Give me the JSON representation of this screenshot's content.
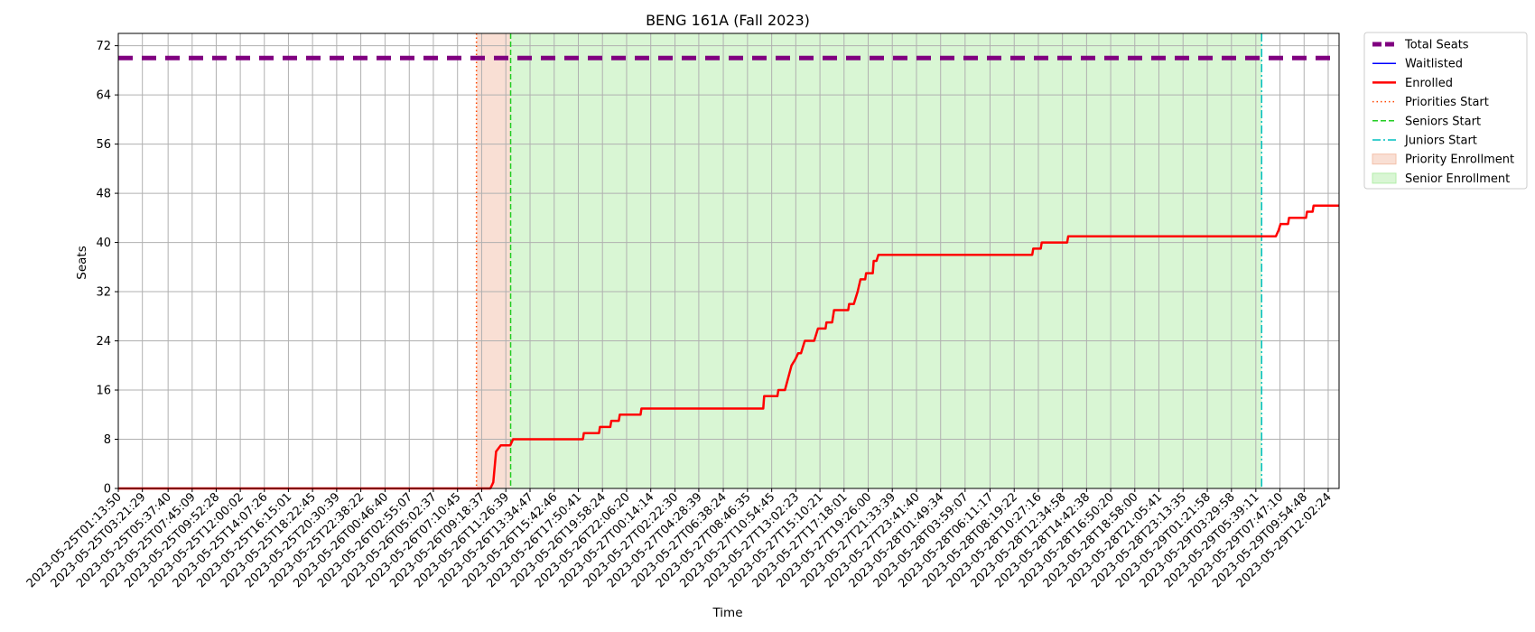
{
  "chart_data": {
    "type": "line",
    "title": "BENG 161A (Fall 2023)",
    "xlabel": "Time",
    "ylabel": "Seats",
    "ylim": [
      0,
      74
    ],
    "yticks": [
      0,
      8,
      16,
      24,
      32,
      40,
      48,
      56,
      64,
      72
    ],
    "xlim": [
      "2023-05-25T01:13:50",
      "2023-05-29T13:00:00"
    ],
    "grid": true,
    "legend_position": "outside-top-right",
    "xtick_labels": [
      "2023-05-25T01:13:50",
      "2023-05-25T03:21:29",
      "2023-05-25T05:37:40",
      "2023-05-25T07:45:09",
      "2023-05-25T09:52:28",
      "2023-05-25T12:00:02",
      "2023-05-25T14:07:26",
      "2023-05-25T16:15:01",
      "2023-05-25T18:22:45",
      "2023-05-25T20:30:39",
      "2023-05-25T22:38:22",
      "2023-05-26T00:46:40",
      "2023-05-26T02:55:07",
      "2023-05-26T05:02:37",
      "2023-05-26T07:10:45",
      "2023-05-26T09:18:37",
      "2023-05-26T11:26:39",
      "2023-05-26T13:34:47",
      "2023-05-26T15:42:46",
      "2023-05-26T17:50:41",
      "2023-05-26T19:58:24",
      "2023-05-26T22:06:20",
      "2023-05-27T00:14:14",
      "2023-05-27T02:22:30",
      "2023-05-27T04:28:39",
      "2023-05-27T06:38:24",
      "2023-05-27T08:46:35",
      "2023-05-27T10:54:45",
      "2023-05-27T13:02:23",
      "2023-05-27T15:10:21",
      "2023-05-27T17:18:01",
      "2023-05-27T19:26:00",
      "2023-05-27T21:33:39",
      "2023-05-27T23:41:40",
      "2023-05-28T01:49:34",
      "2023-05-28T03:59:07",
      "2023-05-28T06:11:17",
      "2023-05-28T08:19:22",
      "2023-05-28T10:27:16",
      "2023-05-28T12:34:58",
      "2023-05-28T14:42:38",
      "2023-05-28T16:50:20",
      "2023-05-28T18:58:00",
      "2023-05-28T21:05:41",
      "2023-05-28T23:13:35",
      "2023-05-29T01:21:58",
      "2023-05-29T03:29:58",
      "2023-05-29T05:39:11",
      "2023-05-29T07:47:10",
      "2023-05-29T09:54:48",
      "2023-05-29T12:02:24"
    ],
    "series": [
      {
        "name": "Total Seats",
        "color": "#800080",
        "style": "dashed-thick",
        "points": [
          [
            "2023-05-25T01:13:50",
            70
          ],
          [
            "2023-05-29T13:00:00",
            70
          ]
        ]
      },
      {
        "name": "Waitlisted",
        "color": "#0000ff",
        "style": "solid-thin",
        "points": []
      },
      {
        "name": "Enrolled",
        "color": "#ff0000",
        "style": "step",
        "points": [
          [
            "2023-05-25T01:13:50",
            0
          ],
          [
            "2023-05-26T10:05:00",
            0
          ],
          [
            "2023-05-26T10:20:00",
            1
          ],
          [
            "2023-05-26T10:35:00",
            6
          ],
          [
            "2023-05-26T11:00:00",
            7
          ],
          [
            "2023-05-26T11:50:00",
            7
          ],
          [
            "2023-05-26T12:05:00",
            8
          ],
          [
            "2023-05-26T18:15:00",
            8
          ],
          [
            "2023-05-26T18:20:00",
            9
          ],
          [
            "2023-05-26T19:40:00",
            9
          ],
          [
            "2023-05-26T19:45:00",
            10
          ],
          [
            "2023-05-26T20:40:00",
            10
          ],
          [
            "2023-05-26T20:45:00",
            11
          ],
          [
            "2023-05-26T21:25:00",
            11
          ],
          [
            "2023-05-26T21:30:00",
            12
          ],
          [
            "2023-05-26T23:20:00",
            12
          ],
          [
            "2023-05-26T23:25:00",
            13
          ],
          [
            "2023-05-27T10:10:00",
            13
          ],
          [
            "2023-05-27T10:15:00",
            15
          ],
          [
            "2023-05-27T11:25:00",
            15
          ],
          [
            "2023-05-27T11:30:00",
            16
          ],
          [
            "2023-05-27T12:05:00",
            16
          ],
          [
            "2023-05-27T12:40:00",
            20
          ],
          [
            "2023-05-27T13:00:00",
            21
          ],
          [
            "2023-05-27T13:15:00",
            22
          ],
          [
            "2023-05-27T13:30:00",
            22
          ],
          [
            "2023-05-27T13:50:00",
            24
          ],
          [
            "2023-05-27T14:40:00",
            24
          ],
          [
            "2023-05-27T15:00:00",
            26
          ],
          [
            "2023-05-27T15:40:00",
            26
          ],
          [
            "2023-05-27T15:45:00",
            27
          ],
          [
            "2023-05-27T16:15:00",
            27
          ],
          [
            "2023-05-27T16:25:00",
            29
          ],
          [
            "2023-05-27T17:40:00",
            29
          ],
          [
            "2023-05-27T17:45:00",
            30
          ],
          [
            "2023-05-27T18:10:00",
            30
          ],
          [
            "2023-05-27T18:20:00",
            31
          ],
          [
            "2023-05-27T18:30:00",
            32
          ],
          [
            "2023-05-27T18:45:00",
            34
          ],
          [
            "2023-05-27T19:10:00",
            34
          ],
          [
            "2023-05-27T19:15:00",
            35
          ],
          [
            "2023-05-27T19:50:00",
            35
          ],
          [
            "2023-05-27T19:55:00",
            37
          ],
          [
            "2023-05-27T20:10:00",
            37
          ],
          [
            "2023-05-27T20:20:00",
            38
          ],
          [
            "2023-05-28T09:55:00",
            38
          ],
          [
            "2023-05-28T10:00:00",
            39
          ],
          [
            "2023-05-28T10:40:00",
            39
          ],
          [
            "2023-05-28T10:45:00",
            40
          ],
          [
            "2023-05-28T13:00:00",
            40
          ],
          [
            "2023-05-28T13:05:00",
            41
          ],
          [
            "2023-05-29T07:25:00",
            41
          ],
          [
            "2023-05-29T07:40:00",
            42
          ],
          [
            "2023-05-29T07:50:00",
            43
          ],
          [
            "2023-05-29T08:30:00",
            43
          ],
          [
            "2023-05-29T08:35:00",
            44
          ],
          [
            "2023-05-29T10:05:00",
            44
          ],
          [
            "2023-05-29T10:10:00",
            45
          ],
          [
            "2023-05-29T10:40:00",
            45
          ],
          [
            "2023-05-29T10:45:00",
            46
          ],
          [
            "2023-05-29T13:00:00",
            46
          ]
        ]
      }
    ],
    "vlines": [
      {
        "name": "Priorities Start",
        "x": "2023-05-26T08:51:00",
        "color": "#ff4500",
        "style": "dotted"
      },
      {
        "name": "Seniors Start",
        "x": "2023-05-26T11:52:00",
        "color": "#22cc22",
        "style": "dashed"
      },
      {
        "name": "Juniors Start",
        "x": "2023-05-29T06:10:00",
        "color": "#00bfbf",
        "style": "dashdot"
      }
    ],
    "spans": [
      {
        "name": "Priority Enrollment",
        "start": "2023-05-26T08:51:00",
        "end": "2023-05-26T11:52:00",
        "color": "#f3c0aa"
      },
      {
        "name": "Senior Enrollment",
        "start": "2023-05-26T11:52:00",
        "end": "2023-05-29T06:10:00",
        "color": "#b3eeaa"
      }
    ],
    "legend": [
      {
        "label": "Total Seats",
        "kind": "line",
        "color": "#800080",
        "style": "dashed-thick"
      },
      {
        "label": "Waitlisted",
        "kind": "line",
        "color": "#0000ff",
        "style": "solid-thin"
      },
      {
        "label": "Enrolled",
        "kind": "line",
        "color": "#ff0000",
        "style": "solid-thick"
      },
      {
        "label": "Priorities Start",
        "kind": "line",
        "color": "#ff4500",
        "style": "dotted"
      },
      {
        "label": "Seniors Start",
        "kind": "line",
        "color": "#22cc22",
        "style": "dashed"
      },
      {
        "label": "Juniors Start",
        "kind": "line",
        "color": "#00bfbf",
        "style": "dashdot"
      },
      {
        "label": "Priority Enrollment",
        "kind": "patch",
        "color": "#f3c0aa"
      },
      {
        "label": "Senior Enrollment",
        "kind": "patch",
        "color": "#b3eeaa"
      }
    ]
  }
}
